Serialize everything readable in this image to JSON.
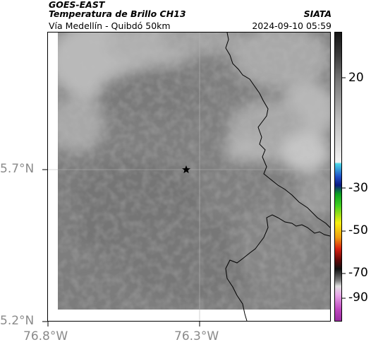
{
  "header": {
    "satellite": "GOES-EAST",
    "product": "Temperatura de Brillo CH13",
    "route": "Vía Medellín - Quibdó 50km",
    "source": "SIATA",
    "timestamp": "2024-09-10 05:59"
  },
  "axes": {
    "lat_ticks": [
      "5.7°N",
      "5.2°N"
    ],
    "lon_ticks": [
      "76.8°W",
      "76.3°W"
    ]
  },
  "colorbar": {
    "ticks": [
      "20",
      "-30",
      "-50",
      "-70",
      "-90"
    ]
  },
  "map": {
    "marker_icon": "star-icon",
    "land_fill_color": "#808080",
    "border_color": "#000000",
    "grid_color": "#b4b4b4"
  }
}
